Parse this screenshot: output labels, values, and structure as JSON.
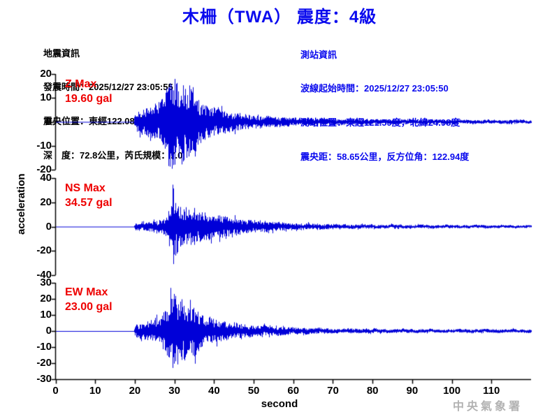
{
  "title": "木柵（TWA） 震度：4級",
  "earthquake_info": {
    "lines": [
      "地震資訊",
      "發震時間：2025/12/27 23:05:55",
      "震央位置：東經122.08度，北緯24.69度",
      "深　度：72.8公里，芮氏規模：7.0"
    ]
  },
  "station_info": {
    "lines": [
      "測站資訊",
      "波線起始時間：2025/12/27 23:05:50",
      "測站位置：東經121.59度，北緯24.98度",
      "震央距：58.65公里，反方位角：122.94度"
    ]
  },
  "labels": {
    "watermark": "中央氣象署"
  },
  "colors": {
    "title_blue": "#0a0aee",
    "station_info_blue": "#0a0aee",
    "max_label_red": "#ee0000",
    "trace_blue": "#0000d8",
    "axis_black": "#000000",
    "watermark_gray": "#b2b2b2"
  },
  "chart_data": {
    "type": "line",
    "title": "木柵（TWA） 震度：4級",
    "xlabel": "second",
    "ylabel": "acceleration",
    "x_range": [
      0,
      120
    ],
    "x_ticks": [
      0,
      10,
      20,
      30,
      40,
      50,
      60,
      70,
      80,
      90,
      100,
      110
    ],
    "grid": false,
    "legend": "none",
    "trace_color": "#0000d8",
    "description": "Three-component strong-motion accelerogram; flat at 0 gal until P-arrival near 20 s, peak shaking 28-36 s, long decaying coda to 120 s",
    "series": [
      {
        "name": "Z",
        "max_label": "Z Max",
        "max_value_label": "19.60 gal",
        "max_gal": 19.6,
        "peak_polarity": -1,
        "ylim": [
          -20,
          20
        ],
        "y_ticks": [
          20,
          10,
          0,
          -10,
          -20
        ],
        "quiet_until_s": 20,
        "peak_time_s": 29.4,
        "envelope": [
          [
            0,
            0
          ],
          [
            19.7,
            0
          ],
          [
            20,
            0.2
          ],
          [
            22,
            0.28
          ],
          [
            24,
            0.33
          ],
          [
            26,
            0.42
          ],
          [
            27.5,
            0.6
          ],
          [
            28.5,
            0.95
          ],
          [
            30,
            1.0
          ],
          [
            31.5,
            0.9
          ],
          [
            33,
            0.8
          ],
          [
            34.5,
            0.8
          ],
          [
            36,
            0.5
          ],
          [
            38,
            0.38
          ],
          [
            40,
            0.32
          ],
          [
            44,
            0.22
          ],
          [
            48,
            0.17
          ],
          [
            54,
            0.12
          ],
          [
            60,
            0.09
          ],
          [
            70,
            0.065
          ],
          [
            85,
            0.05
          ],
          [
            100,
            0.045
          ],
          [
            120,
            0.04
          ]
        ],
        "spikes": [
          [
            28.7,
            14.0
          ],
          [
            29.35,
            -19.6
          ],
          [
            30.6,
            14.5
          ],
          [
            33.1,
            -15.0
          ],
          [
            34.7,
            14.5
          ],
          [
            35.2,
            -14.5
          ]
        ]
      },
      {
        "name": "NS",
        "max_label": "NS Max",
        "max_value_label": "34.57 gal",
        "max_gal": 34.57,
        "peak_polarity": 1,
        "ylim": [
          -40,
          40
        ],
        "y_ticks": [
          40,
          20,
          0,
          -20,
          -40
        ],
        "quiet_until_s": 20,
        "peak_time_s": 29.5,
        "envelope": [
          [
            0,
            0
          ],
          [
            19.7,
            0
          ],
          [
            20,
            0.1
          ],
          [
            23,
            0.12
          ],
          [
            26,
            0.16
          ],
          [
            28,
            0.22
          ],
          [
            29,
            0.5
          ],
          [
            29.6,
            1.0
          ],
          [
            30.3,
            0.55
          ],
          [
            31.5,
            0.48
          ],
          [
            33,
            0.45
          ],
          [
            35,
            0.4
          ],
          [
            37,
            0.35
          ],
          [
            40,
            0.3
          ],
          [
            43,
            0.26
          ],
          [
            46,
            0.2
          ],
          [
            50,
            0.15
          ],
          [
            56,
            0.11
          ],
          [
            62,
            0.08
          ],
          [
            70,
            0.06
          ],
          [
            85,
            0.045
          ],
          [
            100,
            0.04
          ],
          [
            120,
            0.035
          ]
        ],
        "spikes": [
          [
            29.5,
            34.57
          ],
          [
            29.9,
            -23.0
          ],
          [
            30.8,
            -21.0
          ],
          [
            32.9,
            16.0
          ],
          [
            34.2,
            -15.0
          ]
        ]
      },
      {
        "name": "EW",
        "max_label": "EW Max",
        "max_value_label": "23.00 gal",
        "max_gal": 23.0,
        "peak_polarity": -1,
        "ylim": [
          -30,
          30
        ],
        "y_ticks": [
          30,
          20,
          10,
          0,
          -10,
          -20,
          -30
        ],
        "quiet_until_s": 20,
        "peak_time_s": 29.55,
        "envelope": [
          [
            0,
            0
          ],
          [
            19.7,
            0
          ],
          [
            20,
            0.17
          ],
          [
            22,
            0.24
          ],
          [
            24,
            0.3
          ],
          [
            26,
            0.38
          ],
          [
            27.5,
            0.55
          ],
          [
            28.8,
            0.85
          ],
          [
            29.8,
            1.0
          ],
          [
            31,
            0.9
          ],
          [
            32.5,
            0.85
          ],
          [
            34,
            0.75
          ],
          [
            35.5,
            0.6
          ],
          [
            37,
            0.45
          ],
          [
            39,
            0.36
          ],
          [
            42,
            0.28
          ],
          [
            46,
            0.2
          ],
          [
            50,
            0.16
          ],
          [
            56,
            0.12
          ],
          [
            62,
            0.09
          ],
          [
            70,
            0.07
          ],
          [
            85,
            0.055
          ],
          [
            100,
            0.05
          ],
          [
            120,
            0.045
          ]
        ],
        "spikes": [
          [
            29.55,
            -23.0
          ],
          [
            28.95,
            13.5
          ],
          [
            30.35,
            15.5
          ],
          [
            31.9,
            -18.0
          ],
          [
            34.5,
            13.5
          ]
        ]
      }
    ]
  }
}
